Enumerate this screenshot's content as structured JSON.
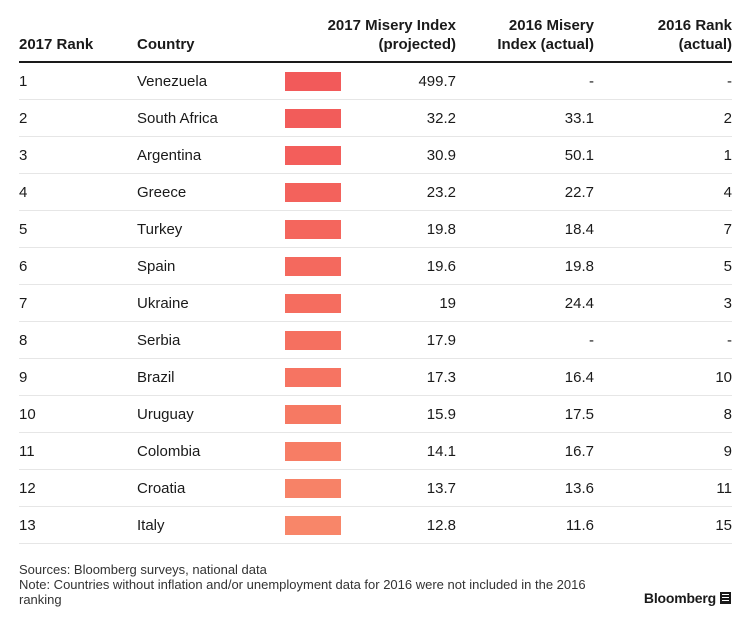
{
  "header": {
    "rank_2017": "2017 Rank",
    "country": "Country",
    "index_2017": "2017 Misery Index\n(projected)",
    "index_2016": "2016 Misery\nIndex (actual)",
    "rank_2016": "2016 Rank\n(actual)"
  },
  "chart_data": {
    "type": "table",
    "columns": [
      "2017 Rank",
      "Country",
      "2017 Misery Index (projected)",
      "2016 Misery Index (actual)",
      "2016 Rank (actual)"
    ],
    "rows": [
      {
        "rank_2017": "1",
        "country": "Venezuela",
        "index_2017": "499.7",
        "index_2016": "-",
        "rank_2016": "-",
        "bar_color": "#f25a5a"
      },
      {
        "rank_2017": "2",
        "country": "South Africa",
        "index_2017": "32.2",
        "index_2016": "33.1",
        "rank_2016": "2",
        "bar_color": "#f25c5a"
      },
      {
        "rank_2017": "3",
        "country": "Argentina",
        "index_2017": "30.9",
        "index_2016": "50.1",
        "rank_2016": "1",
        "bar_color": "#f35e5b"
      },
      {
        "rank_2017": "4",
        "country": "Greece",
        "index_2017": "23.2",
        "index_2016": "22.7",
        "rank_2016": "4",
        "bar_color": "#f3625c"
      },
      {
        "rank_2017": "5",
        "country": "Turkey",
        "index_2017": "19.8",
        "index_2016": "18.4",
        "rank_2016": "7",
        "bar_color": "#f4665d"
      },
      {
        "rank_2017": "6",
        "country": "Spain",
        "index_2017": "19.6",
        "index_2016": "19.8",
        "rank_2016": "5",
        "bar_color": "#f4695e"
      },
      {
        "rank_2017": "7",
        "country": "Ukraine",
        "index_2017": "19",
        "index_2016": "24.4",
        "rank_2016": "3",
        "bar_color": "#f56d5f"
      },
      {
        "rank_2017": "8",
        "country": "Serbia",
        "index_2017": "17.9",
        "index_2016": "-",
        "rank_2016": "-",
        "bar_color": "#f57060"
      },
      {
        "rank_2017": "9",
        "country": "Brazil",
        "index_2017": "17.3",
        "index_2016": "16.4",
        "rank_2016": "10",
        "bar_color": "#f67462"
      },
      {
        "rank_2017": "10",
        "country": "Uruguay",
        "index_2017": "15.9",
        "index_2016": "17.5",
        "rank_2016": "8",
        "bar_color": "#f67963"
      },
      {
        "rank_2017": "11",
        "country": "Colombia",
        "index_2017": "14.1",
        "index_2016": "16.7",
        "rank_2016": "9",
        "bar_color": "#f77d65"
      },
      {
        "rank_2017": "12",
        "country": "Croatia",
        "index_2017": "13.7",
        "index_2016": "13.6",
        "rank_2016": "11",
        "bar_color": "#f78267"
      },
      {
        "rank_2017": "13",
        "country": "Italy",
        "index_2017": "12.8",
        "index_2016": "11.6",
        "rank_2016": "15",
        "bar_color": "#f88669"
      }
    ]
  },
  "footer": {
    "sources": "Sources: Bloomberg surveys, national data",
    "note": "Note: Countries without inflation and/or unemployment data for 2016 were not included in the 2016 ranking"
  },
  "brand": {
    "name": "Bloomberg",
    "icon": "bloomberg-logo-icon"
  }
}
